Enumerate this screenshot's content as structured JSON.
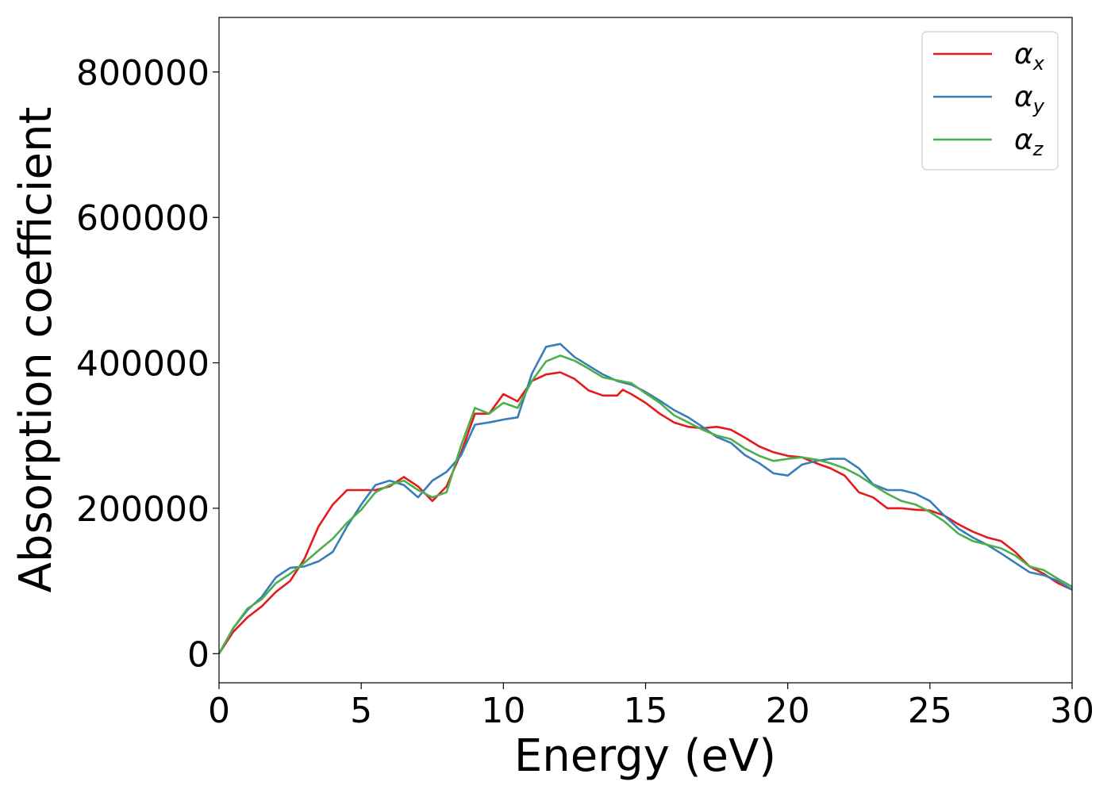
{
  "chart_data": {
    "type": "line",
    "title": "",
    "xlabel": "Energy (eV)",
    "ylabel": "Absorption coefficient",
    "xlim": [
      0,
      30
    ],
    "ylim": [
      -40000,
      875000
    ],
    "xticks": [
      0,
      5,
      10,
      15,
      20,
      25,
      30
    ],
    "yticks": [
      0,
      200000,
      400000,
      600000,
      800000
    ],
    "grid": false,
    "legend": "top-right",
    "series": [
      {
        "name": "α_x",
        "label_base": "α",
        "label_sub": "x",
        "color": "#e41a1c",
        "x": [
          0,
          0.5,
          1,
          1.5,
          2,
          2.5,
          3,
          3.5,
          4,
          4.5,
          5,
          5.5,
          6,
          6.5,
          7,
          7.5,
          8,
          8.5,
          9,
          9.5,
          10,
          10.5,
          11,
          11.5,
          12,
          12.5,
          13,
          13.5,
          14,
          14.2,
          14.5,
          15,
          15.5,
          16,
          16.5,
          17,
          17.5,
          18,
          18.5,
          19,
          19.5,
          20,
          20.5,
          21,
          21.5,
          22,
          22.5,
          23,
          23.5,
          24,
          24.5,
          25,
          25.5,
          26,
          26.5,
          27,
          27.5,
          28,
          28.5,
          29,
          29.5,
          30
        ],
        "y": [
          0,
          30000,
          50000,
          65000,
          85000,
          100000,
          130000,
          175000,
          205000,
          225000,
          225000,
          225000,
          230000,
          243000,
          230000,
          210000,
          230000,
          275000,
          330000,
          330000,
          357000,
          347000,
          375000,
          384000,
          387000,
          378000,
          362000,
          355000,
          355000,
          363000,
          357000,
          345000,
          330000,
          318000,
          312000,
          310000,
          312000,
          308000,
          297000,
          285000,
          277000,
          272000,
          270000,
          262000,
          255000,
          245000,
          222000,
          215000,
          200000,
          200000,
          198000,
          197000,
          190000,
          178000,
          168000,
          160000,
          155000,
          140000,
          120000,
          110000,
          97000,
          88000
        ]
      },
      {
        "name": "α_y",
        "label_base": "α",
        "label_sub": "y",
        "color": "#377eb8",
        "x": [
          0,
          0.5,
          1,
          1.5,
          2,
          2.5,
          3,
          3.5,
          4,
          4.5,
          5,
          5.5,
          6,
          6.5,
          7,
          7.5,
          8,
          8.5,
          9,
          9.5,
          10,
          10.5,
          11,
          11.5,
          12,
          12.5,
          13,
          13.5,
          14,
          14.5,
          15,
          15.5,
          16,
          16.5,
          17,
          17.5,
          18,
          18.5,
          19,
          19.5,
          20,
          20.5,
          21,
          21.5,
          22,
          22.5,
          23,
          23.5,
          24,
          24.5,
          25,
          25.5,
          26,
          26.5,
          27,
          27.5,
          28,
          28.5,
          29,
          29.5,
          30
        ],
        "y": [
          0,
          35000,
          60000,
          78000,
          105000,
          118000,
          120000,
          127000,
          140000,
          175000,
          205000,
          232000,
          238000,
          232000,
          215000,
          238000,
          250000,
          272000,
          315000,
          318000,
          322000,
          325000,
          385000,
          422000,
          426000,
          408000,
          396000,
          384000,
          375000,
          370000,
          360000,
          348000,
          335000,
          325000,
          312000,
          298000,
          290000,
          273000,
          262000,
          248000,
          245000,
          260000,
          265000,
          268000,
          268000,
          255000,
          233000,
          225000,
          225000,
          220000,
          210000,
          190000,
          172000,
          160000,
          150000,
          138000,
          125000,
          112000,
          108000,
          100000,
          88000
        ]
      },
      {
        "name": "α_z",
        "label_base": "α",
        "label_sub": "z",
        "color": "#4daf4a",
        "x": [
          0,
          0.5,
          1,
          1.5,
          2,
          2.5,
          3,
          3.5,
          4,
          4.5,
          5,
          5.5,
          6,
          6.5,
          7,
          7.5,
          8,
          8.5,
          9,
          9.5,
          10,
          10.5,
          11,
          11.5,
          12,
          12.5,
          13,
          13.5,
          14,
          14.5,
          15,
          15.5,
          16,
          16.5,
          17,
          17.5,
          18,
          18.5,
          19,
          19.5,
          20,
          20.5,
          21,
          21.5,
          22,
          22.5,
          23,
          23.5,
          24,
          24.5,
          25,
          25.5,
          26,
          26.5,
          27,
          27.5,
          28,
          28.5,
          29,
          29.5,
          30
        ],
        "y": [
          0,
          35000,
          62000,
          75000,
          97000,
          110000,
          125000,
          142000,
          158000,
          180000,
          198000,
          222000,
          232000,
          238000,
          225000,
          215000,
          222000,
          285000,
          338000,
          330000,
          345000,
          338000,
          375000,
          402000,
          410000,
          403000,
          392000,
          380000,
          376000,
          372000,
          358000,
          345000,
          328000,
          318000,
          308000,
          300000,
          295000,
          282000,
          272000,
          265000,
          268000,
          270000,
          267000,
          262000,
          255000,
          245000,
          232000,
          220000,
          210000,
          205000,
          195000,
          182000,
          165000,
          155000,
          150000,
          145000,
          135000,
          120000,
          115000,
          103000,
          92000
        ]
      }
    ]
  }
}
